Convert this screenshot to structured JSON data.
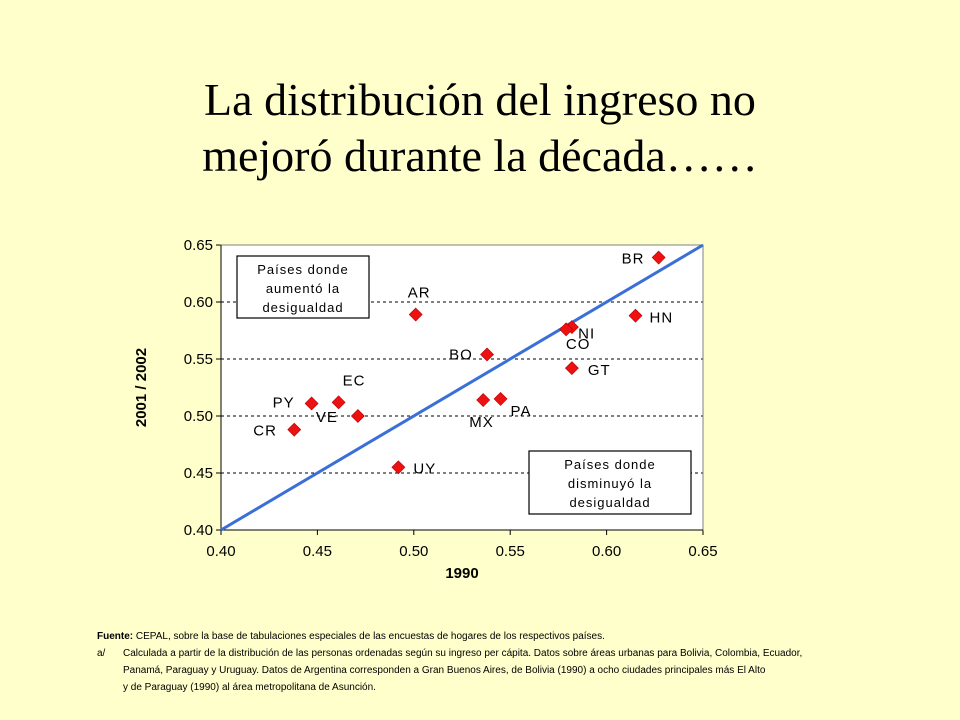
{
  "title": {
    "line1": "La distribución del ingreso no",
    "line2": "mejoró durante la década……"
  },
  "chart_data": {
    "type": "scatter",
    "xlabel": "1990",
    "ylabel": "2001 / 2002",
    "xlim": [
      0.4,
      0.65
    ],
    "ylim": [
      0.4,
      0.65
    ],
    "xticks": [
      "0.40",
      "0.45",
      "0.50",
      "0.55",
      "0.60",
      "0.65"
    ],
    "yticks": [
      "0.40",
      "0.45",
      "0.50",
      "0.55",
      "0.60",
      "0.65"
    ],
    "grid": "horizontal dashed",
    "reference_line": {
      "name": "45-degree line",
      "from": [
        0.4,
        0.4
      ],
      "to": [
        0.65,
        0.65
      ],
      "color": "#3b6fd8"
    },
    "marker_color": "#ee1111",
    "points": [
      {
        "label": "AR",
        "x": 0.501,
        "y": 0.589
      },
      {
        "label": "BO",
        "x": 0.538,
        "y": 0.554
      },
      {
        "label": "BR",
        "x": 0.627,
        "y": 0.639
      },
      {
        "label": "CO",
        "x": 0.582,
        "y": 0.578
      },
      {
        "label": "NI",
        "x": 0.579,
        "y": 0.576
      },
      {
        "label": "CR",
        "x": 0.438,
        "y": 0.488
      },
      {
        "label": "EC",
        "x": 0.461,
        "y": 0.512
      },
      {
        "label": "GT",
        "x": 0.582,
        "y": 0.542
      },
      {
        "label": "HN",
        "x": 0.615,
        "y": 0.588
      },
      {
        "label": "MX",
        "x": 0.536,
        "y": 0.514
      },
      {
        "label": "PA",
        "x": 0.545,
        "y": 0.515
      },
      {
        "label": "PY",
        "x": 0.447,
        "y": 0.511
      },
      {
        "label": "UY",
        "x": 0.492,
        "y": 0.455
      },
      {
        "label": "VE",
        "x": 0.471,
        "y": 0.5
      }
    ],
    "annotations": {
      "box_up": [
        "Países donde",
        "aumentó la",
        "desigualdad"
      ],
      "box_down": [
        "Países donde",
        "disminuyó la",
        "desigualdad"
      ]
    }
  },
  "footnote": {
    "source_label": "Fuente:",
    "source_text": " CEPAL, sobre la base de tabulaciones especiales de las encuestas de hogares de los respectivos países.",
    "note_prefix": "a/",
    "note_line1": "Calculada a partir de la distribución de las personas ordenadas según su ingreso per cápita. Datos sobre áreas urbanas para Bolivia, Colombia, Ecuador,",
    "note_line2": "Panamá, Paraguay y Uruguay. Datos de Argentina corresponden a Gran Buenos Aires, de Bolivia (1990) a ocho ciudades principales más El Alto",
    "note_line3": "y de Paraguay (1990) al área metropolitana de Asunción."
  }
}
